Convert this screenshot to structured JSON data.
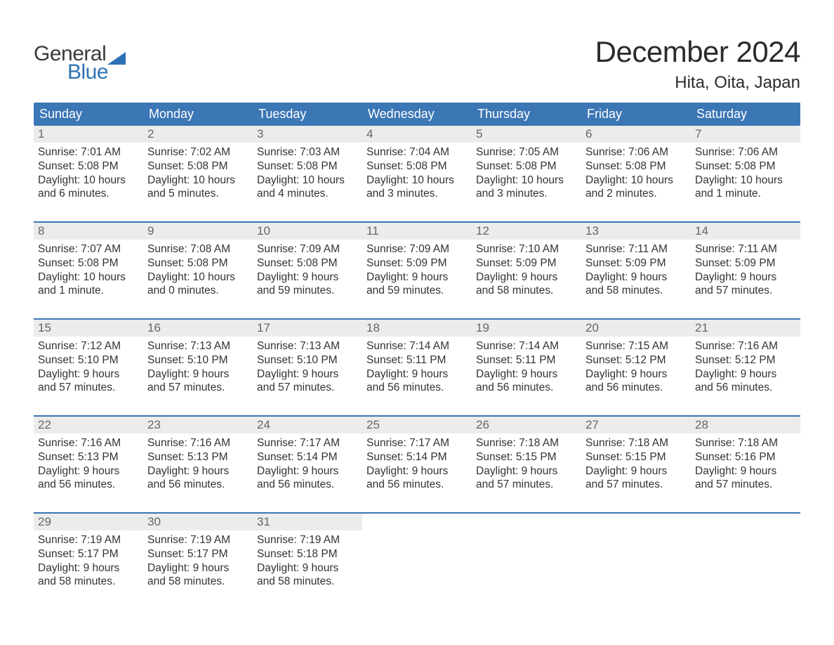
{
  "colors": {
    "header_bg": "#3b76b5",
    "week_border": "#3b76b5",
    "daynum_bg": "#ececec",
    "text": "#333333",
    "logo_blue": "#2d72b5",
    "page_bg": "#ffffff"
  },
  "logo": {
    "word1": "General",
    "word2": "Blue"
  },
  "title": "December 2024",
  "location": "Hita, Oita, Japan",
  "weekdays": [
    "Sunday",
    "Monday",
    "Tuesday",
    "Wednesday",
    "Thursday",
    "Friday",
    "Saturday"
  ],
  "weeks": [
    [
      {
        "n": "1",
        "sunrise": "Sunrise: 7:01 AM",
        "sunset": "Sunset: 5:08 PM",
        "d1": "Daylight: 10 hours",
        "d2": "and 6 minutes."
      },
      {
        "n": "2",
        "sunrise": "Sunrise: 7:02 AM",
        "sunset": "Sunset: 5:08 PM",
        "d1": "Daylight: 10 hours",
        "d2": "and 5 minutes."
      },
      {
        "n": "3",
        "sunrise": "Sunrise: 7:03 AM",
        "sunset": "Sunset: 5:08 PM",
        "d1": "Daylight: 10 hours",
        "d2": "and 4 minutes."
      },
      {
        "n": "4",
        "sunrise": "Sunrise: 7:04 AM",
        "sunset": "Sunset: 5:08 PM",
        "d1": "Daylight: 10 hours",
        "d2": "and 3 minutes."
      },
      {
        "n": "5",
        "sunrise": "Sunrise: 7:05 AM",
        "sunset": "Sunset: 5:08 PM",
        "d1": "Daylight: 10 hours",
        "d2": "and 3 minutes."
      },
      {
        "n": "6",
        "sunrise": "Sunrise: 7:06 AM",
        "sunset": "Sunset: 5:08 PM",
        "d1": "Daylight: 10 hours",
        "d2": "and 2 minutes."
      },
      {
        "n": "7",
        "sunrise": "Sunrise: 7:06 AM",
        "sunset": "Sunset: 5:08 PM",
        "d1": "Daylight: 10 hours",
        "d2": "and 1 minute."
      }
    ],
    [
      {
        "n": "8",
        "sunrise": "Sunrise: 7:07 AM",
        "sunset": "Sunset: 5:08 PM",
        "d1": "Daylight: 10 hours",
        "d2": "and 1 minute."
      },
      {
        "n": "9",
        "sunrise": "Sunrise: 7:08 AM",
        "sunset": "Sunset: 5:08 PM",
        "d1": "Daylight: 10 hours",
        "d2": "and 0 minutes."
      },
      {
        "n": "10",
        "sunrise": "Sunrise: 7:09 AM",
        "sunset": "Sunset: 5:08 PM",
        "d1": "Daylight: 9 hours",
        "d2": "and 59 minutes."
      },
      {
        "n": "11",
        "sunrise": "Sunrise: 7:09 AM",
        "sunset": "Sunset: 5:09 PM",
        "d1": "Daylight: 9 hours",
        "d2": "and 59 minutes."
      },
      {
        "n": "12",
        "sunrise": "Sunrise: 7:10 AM",
        "sunset": "Sunset: 5:09 PM",
        "d1": "Daylight: 9 hours",
        "d2": "and 58 minutes."
      },
      {
        "n": "13",
        "sunrise": "Sunrise: 7:11 AM",
        "sunset": "Sunset: 5:09 PM",
        "d1": "Daylight: 9 hours",
        "d2": "and 58 minutes."
      },
      {
        "n": "14",
        "sunrise": "Sunrise: 7:11 AM",
        "sunset": "Sunset: 5:09 PM",
        "d1": "Daylight: 9 hours",
        "d2": "and 57 minutes."
      }
    ],
    [
      {
        "n": "15",
        "sunrise": "Sunrise: 7:12 AM",
        "sunset": "Sunset: 5:10 PM",
        "d1": "Daylight: 9 hours",
        "d2": "and 57 minutes."
      },
      {
        "n": "16",
        "sunrise": "Sunrise: 7:13 AM",
        "sunset": "Sunset: 5:10 PM",
        "d1": "Daylight: 9 hours",
        "d2": "and 57 minutes."
      },
      {
        "n": "17",
        "sunrise": "Sunrise: 7:13 AM",
        "sunset": "Sunset: 5:10 PM",
        "d1": "Daylight: 9 hours",
        "d2": "and 57 minutes."
      },
      {
        "n": "18",
        "sunrise": "Sunrise: 7:14 AM",
        "sunset": "Sunset: 5:11 PM",
        "d1": "Daylight: 9 hours",
        "d2": "and 56 minutes."
      },
      {
        "n": "19",
        "sunrise": "Sunrise: 7:14 AM",
        "sunset": "Sunset: 5:11 PM",
        "d1": "Daylight: 9 hours",
        "d2": "and 56 minutes."
      },
      {
        "n": "20",
        "sunrise": "Sunrise: 7:15 AM",
        "sunset": "Sunset: 5:12 PM",
        "d1": "Daylight: 9 hours",
        "d2": "and 56 minutes."
      },
      {
        "n": "21",
        "sunrise": "Sunrise: 7:16 AM",
        "sunset": "Sunset: 5:12 PM",
        "d1": "Daylight: 9 hours",
        "d2": "and 56 minutes."
      }
    ],
    [
      {
        "n": "22",
        "sunrise": "Sunrise: 7:16 AM",
        "sunset": "Sunset: 5:13 PM",
        "d1": "Daylight: 9 hours",
        "d2": "and 56 minutes."
      },
      {
        "n": "23",
        "sunrise": "Sunrise: 7:16 AM",
        "sunset": "Sunset: 5:13 PM",
        "d1": "Daylight: 9 hours",
        "d2": "and 56 minutes."
      },
      {
        "n": "24",
        "sunrise": "Sunrise: 7:17 AM",
        "sunset": "Sunset: 5:14 PM",
        "d1": "Daylight: 9 hours",
        "d2": "and 56 minutes."
      },
      {
        "n": "25",
        "sunrise": "Sunrise: 7:17 AM",
        "sunset": "Sunset: 5:14 PM",
        "d1": "Daylight: 9 hours",
        "d2": "and 56 minutes."
      },
      {
        "n": "26",
        "sunrise": "Sunrise: 7:18 AM",
        "sunset": "Sunset: 5:15 PM",
        "d1": "Daylight: 9 hours",
        "d2": "and 57 minutes."
      },
      {
        "n": "27",
        "sunrise": "Sunrise: 7:18 AM",
        "sunset": "Sunset: 5:15 PM",
        "d1": "Daylight: 9 hours",
        "d2": "and 57 minutes."
      },
      {
        "n": "28",
        "sunrise": "Sunrise: 7:18 AM",
        "sunset": "Sunset: 5:16 PM",
        "d1": "Daylight: 9 hours",
        "d2": "and 57 minutes."
      }
    ],
    [
      {
        "n": "29",
        "sunrise": "Sunrise: 7:19 AM",
        "sunset": "Sunset: 5:17 PM",
        "d1": "Daylight: 9 hours",
        "d2": "and 58 minutes."
      },
      {
        "n": "30",
        "sunrise": "Sunrise: 7:19 AM",
        "sunset": "Sunset: 5:17 PM",
        "d1": "Daylight: 9 hours",
        "d2": "and 58 minutes."
      },
      {
        "n": "31",
        "sunrise": "Sunrise: 7:19 AM",
        "sunset": "Sunset: 5:18 PM",
        "d1": "Daylight: 9 hours",
        "d2": "and 58 minutes."
      },
      {
        "empty": true
      },
      {
        "empty": true
      },
      {
        "empty": true
      },
      {
        "empty": true
      }
    ]
  ]
}
